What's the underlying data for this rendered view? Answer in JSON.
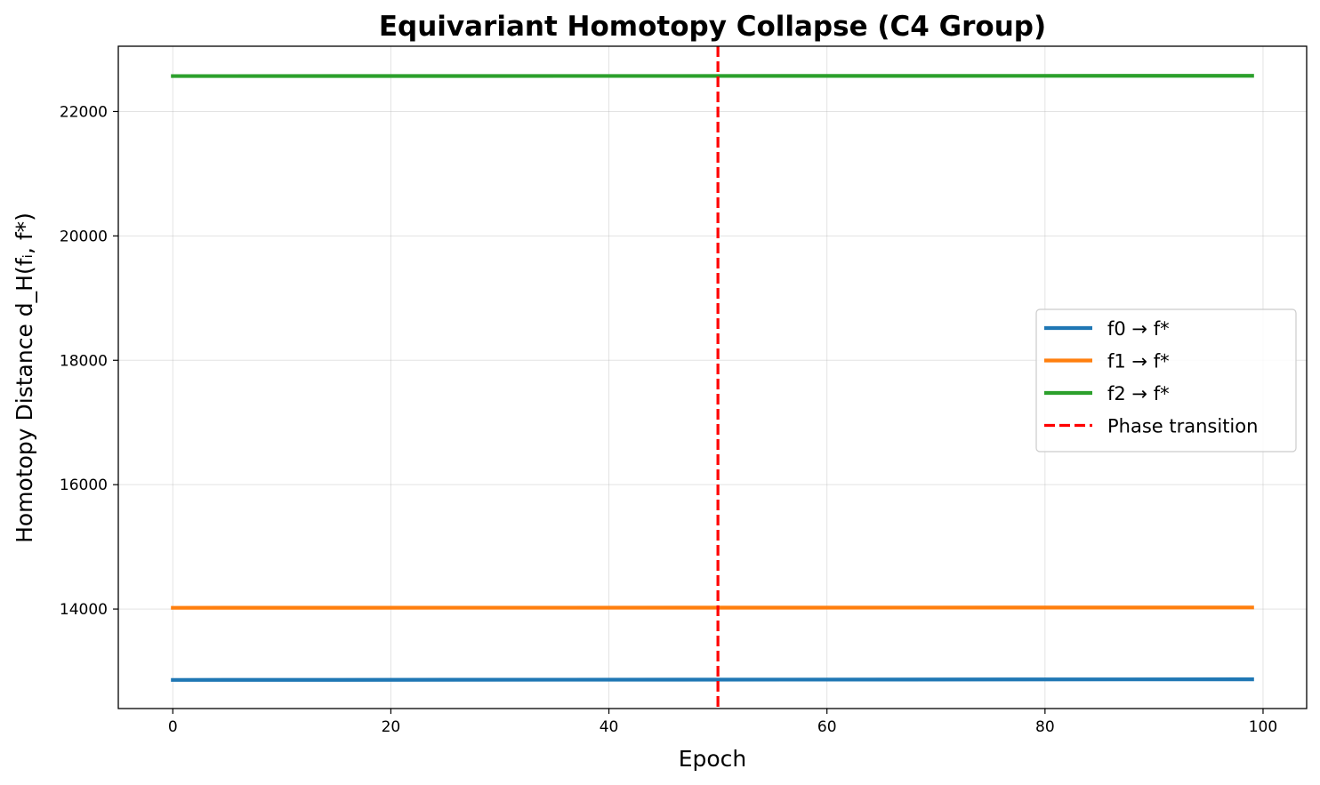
{
  "chart_data": {
    "type": "line",
    "title": "Equivariant Homotopy Collapse (C4 Group)",
    "xlabel": "Epoch",
    "ylabel": "Homotopy Distance d_H(fᵢ, f*)",
    "xlim": [
      -5,
      104
    ],
    "ylim": [
      12400,
      23050
    ],
    "x_ticks": [
      0,
      20,
      40,
      60,
      80,
      100
    ],
    "y_ticks": [
      14000,
      16000,
      18000,
      20000,
      22000
    ],
    "grid": true,
    "legend_position": "center-right",
    "series": [
      {
        "name": "f0 → f*",
        "color": "#1f77b4",
        "x": [
          0,
          99
        ],
        "values": [
          12860,
          12870
        ]
      },
      {
        "name": "f1 → f*",
        "color": "#ff7f0e",
        "x": [
          0,
          99
        ],
        "values": [
          14020,
          14025
        ]
      },
      {
        "name": "f2 → f*",
        "color": "#2ca02c",
        "x": [
          0,
          99
        ],
        "values": [
          22570,
          22575
        ]
      }
    ],
    "annotations": [
      {
        "type": "vline",
        "x": 50,
        "name": "Phase transition",
        "color": "#ff0000",
        "style": "dashed"
      }
    ]
  }
}
